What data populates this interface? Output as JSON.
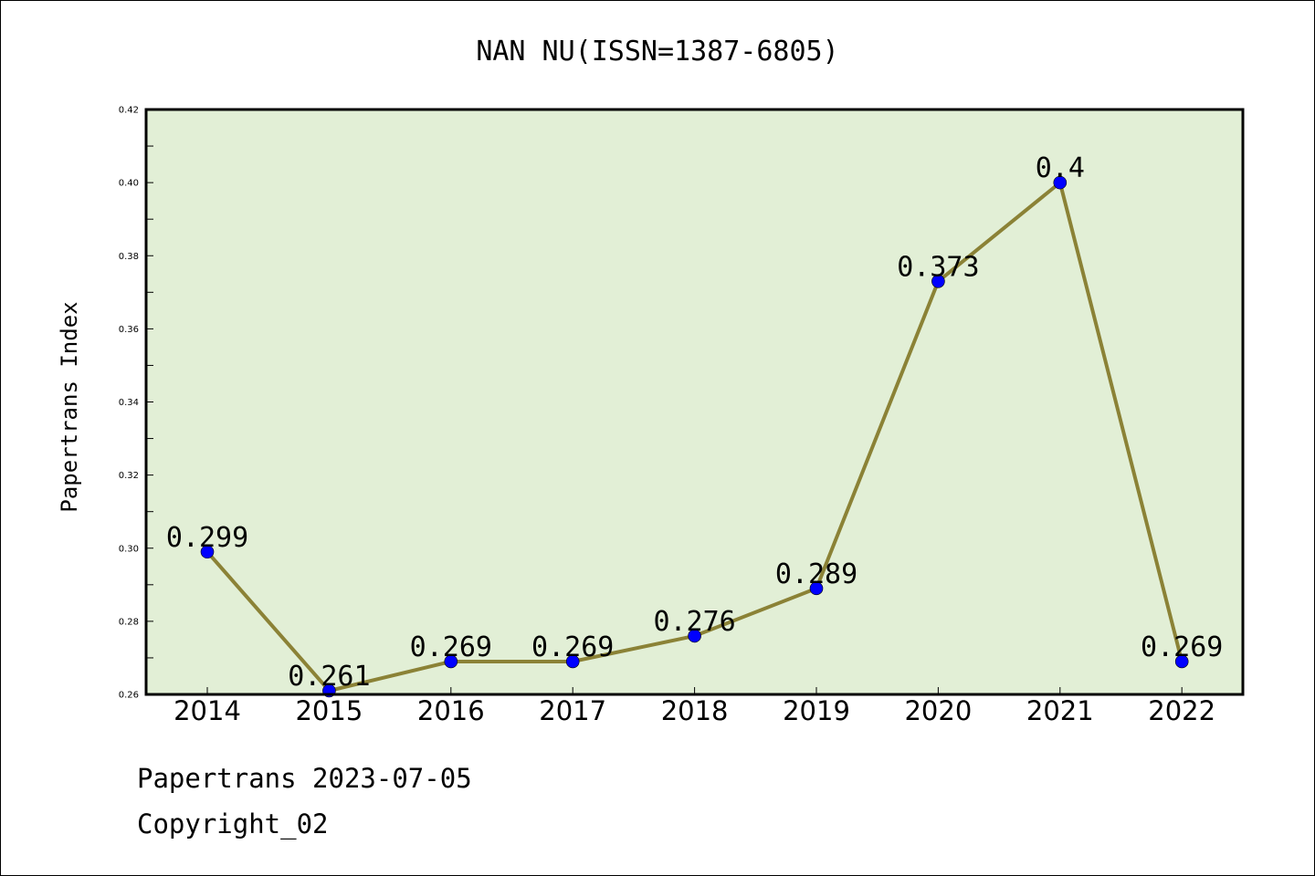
{
  "chart_data": {
    "type": "line",
    "title": "NAN NU(ISSN=1387-6805)",
    "xlabel": "",
    "ylabel": "Papertrans Index",
    "categories": [
      "2014",
      "2015",
      "2016",
      "2017",
      "2018",
      "2019",
      "2020",
      "2021",
      "2022"
    ],
    "series": [
      {
        "values": [
          0.299,
          0.261,
          0.269,
          0.269,
          0.276,
          0.289,
          0.373,
          0.4,
          0.269
        ]
      }
    ],
    "data_labels": [
      "0.299",
      "0.261",
      "0.269",
      "0.269",
      "0.276",
      "0.289",
      "0.373",
      "0.4",
      "0.269"
    ],
    "ylim": [
      0.26,
      0.42
    ],
    "yticks": [
      "0.26",
      "0.28",
      "0.30",
      "0.32",
      "0.34",
      "0.36",
      "0.38",
      "0.40",
      "0.42"
    ],
    "grid": false,
    "colors": {
      "plot_background": "#e2efd6",
      "line": "#8b8236",
      "marker": "#0000ff"
    }
  },
  "footer": {
    "line1": "Papertrans 2023-07-05",
    "line2": "Copyright_02"
  }
}
